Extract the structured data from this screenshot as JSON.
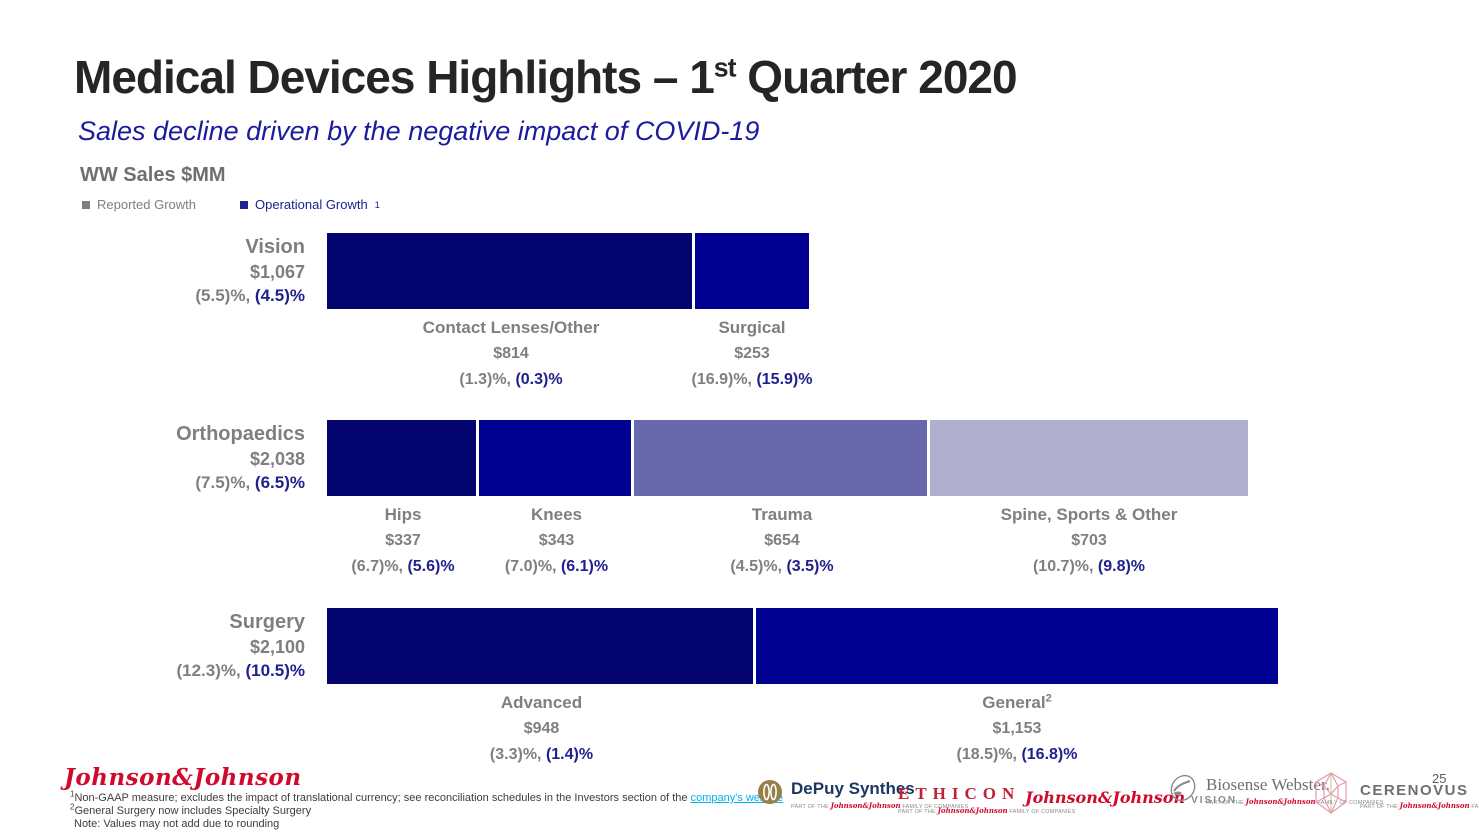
{
  "header": {
    "title": {
      "text": "Medical Devices Highlights – 1",
      "sup": "st",
      "tail": " Quarter 2020"
    },
    "subtitle": "Sales decline driven by the negative impact of COVID-19"
  },
  "chart_data": {
    "type": "bar",
    "title": "WW Sales $MM",
    "unit": "$MM",
    "orientation": "horizontal-stacked",
    "legend": [
      {
        "label": "Reported Growth",
        "color": "#7f7f7f"
      },
      {
        "label": "Operational Growth",
        "sup": "1",
        "color": "#20208e"
      }
    ],
    "rows": [
      {
        "category": "Vision",
        "total_sales": "$1,067",
        "total_value": 1067,
        "reported_growth": "(5.5)%",
        "operational_growth": "(4.5)%",
        "segments": [
          {
            "name": "Contact Lenses/Other",
            "value": 814,
            "sales": "$814",
            "reported_growth": "(1.3)%",
            "operational_growth": "(0.3)%",
            "color": "#04046f"
          },
          {
            "name": "Surgical",
            "value": 253,
            "sales": "$253",
            "reported_growth": "(16.9)%",
            "operational_growth": "(15.9)%",
            "color": "#000091"
          }
        ]
      },
      {
        "category": "Orthopaedics",
        "total_sales": "$2,038",
        "total_value": 2038,
        "reported_growth": "(7.5)%",
        "operational_growth": "(6.5)%",
        "segments": [
          {
            "name": "Hips",
            "value": 337,
            "sales": "$337",
            "reported_growth": "(6.7)%",
            "operational_growth": "(5.6)%",
            "color": "#04046f"
          },
          {
            "name": "Knees",
            "value": 343,
            "sales": "$343",
            "reported_growth": "(7.0)%",
            "operational_growth": "(6.1)%",
            "color": "#000091"
          },
          {
            "name": "Trauma",
            "value": 654,
            "sales": "$654",
            "reported_growth": "(4.5)%",
            "operational_growth": "(3.5)%",
            "color": "#6a68ac"
          },
          {
            "name": "Spine, Sports & Other",
            "value": 703,
            "sales": "$703",
            "reported_growth": "(10.7)%",
            "operational_growth": "(9.8)%",
            "color": "#b0afce"
          }
        ]
      },
      {
        "category": "Surgery",
        "total_sales": "$2,100",
        "total_value": 2100,
        "reported_growth": "(12.3)%",
        "operational_growth": "(10.5)%",
        "segments": [
          {
            "name": "Advanced",
            "value": 948,
            "sales": "$948",
            "reported_growth": "(3.3)%",
            "operational_growth": "(1.4)%",
            "color": "#04046f"
          },
          {
            "name": "General",
            "name_sup": "2",
            "value": 1153,
            "sales": "$1,153",
            "reported_growth": "(18.5)%",
            "operational_growth": "(16.8)%",
            "color": "#000091"
          }
        ]
      }
    ]
  },
  "footer": {
    "jnj_logo": "Johnson&Johnson",
    "footnote1": {
      "sup": "1",
      "text": "Non-GAAP measure; excludes the impact of translational currency; see reconciliation schedules in the Investors section of the ",
      "link": "company's website"
    },
    "footnote2": {
      "sup": "2",
      "text": "General Surgery now includes Specialty Surgery"
    },
    "note": "Note: Values may not add due to rounding",
    "brand_tagline": {
      "pre": "PART OF THE",
      "brand": "Johnson&Johnson",
      "post": "FAMILY OF COMPANIES"
    },
    "brands": [
      {
        "name": "DePuy Synthes"
      },
      {
        "name": "ETHICON"
      },
      {
        "name": "Johnson&Johnson",
        "suffix": "VISION"
      },
      {
        "name": "Biosense Webster."
      },
      {
        "name": "CERENOVUS"
      }
    ],
    "page_number": "25"
  }
}
